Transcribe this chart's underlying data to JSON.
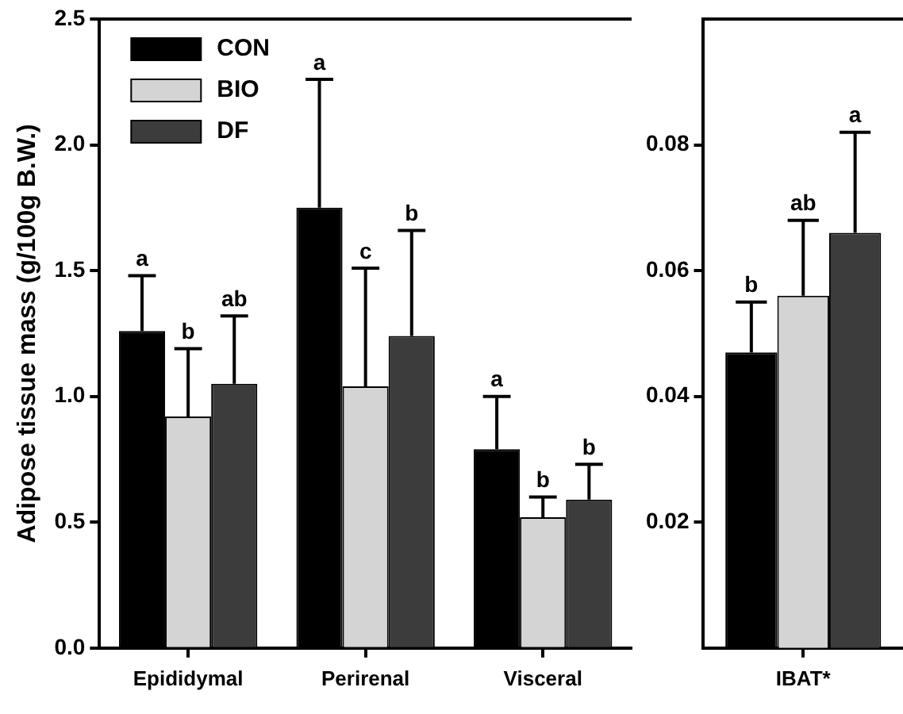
{
  "chart_data": [
    {
      "type": "bar",
      "ylabel": "Adipose tissue mass (g/100g B.W.)",
      "categories": [
        "Epididymal",
        "Perirenal",
        "Visceral"
      ],
      "ylim": [
        0,
        2.5
      ],
      "yticks": [
        {
          "value": 0,
          "label": "0.0"
        },
        {
          "value": 0.5,
          "label": "0.5"
        },
        {
          "value": 1,
          "label": "1.0"
        },
        {
          "value": 1.5,
          "label": "1.5"
        },
        {
          "value": 2,
          "label": "2.0"
        },
        {
          "value": 2.5,
          "label": "2.5"
        }
      ],
      "legend": "top left",
      "series": [
        {
          "name": "CON",
          "color": "#000000",
          "values": [
            1.26,
            1.75,
            0.79
          ],
          "errors": [
            [
              1.26,
              1.48
            ],
            [
              1.75,
              2.26
            ],
            [
              0.79,
              1.0
            ]
          ]
        },
        {
          "name": "BIO",
          "color": "#d4d4d4",
          "values": [
            0.92,
            1.04,
            0.52
          ],
          "errors": [
            [
              0.92,
              1.19
            ],
            [
              1.04,
              1.51
            ],
            [
              0.52,
              0.6
            ]
          ]
        },
        {
          "name": "DF",
          "color": "#3c3c3c",
          "values": [
            1.05,
            1.24,
            0.59
          ],
          "errors": [
            [
              1.05,
              1.32
            ],
            [
              1.24,
              1.66
            ],
            [
              0.59,
              0.73
            ]
          ]
        }
      ],
      "annotations": [
        "a",
        "b",
        "ab",
        "a",
        "c",
        "b",
        "a",
        "b",
        "b"
      ]
    },
    {
      "type": "bar",
      "categories": [
        "IBAT*"
      ],
      "ylim": [
        0,
        0.1
      ],
      "yticks": [
        0.02,
        0.04,
        0.06,
        0.08
      ],
      "series": [
        {
          "color": "#000000",
          "values": [
            0.047
          ],
          "errors": [
            [
              0.047,
              0.055
            ]
          ]
        },
        {
          "color": "#d4d4d4",
          "values": [
            0.056
          ],
          "errors": [
            [
              0.056,
              0.068
            ]
          ]
        },
        {
          "color": "#3c3c3c",
          "values": [
            0.066
          ],
          "errors": [
            [
              0.066,
              0.082
            ]
          ]
        }
      ],
      "annotations": [
        "b",
        "ab",
        "a"
      ]
    }
  ]
}
